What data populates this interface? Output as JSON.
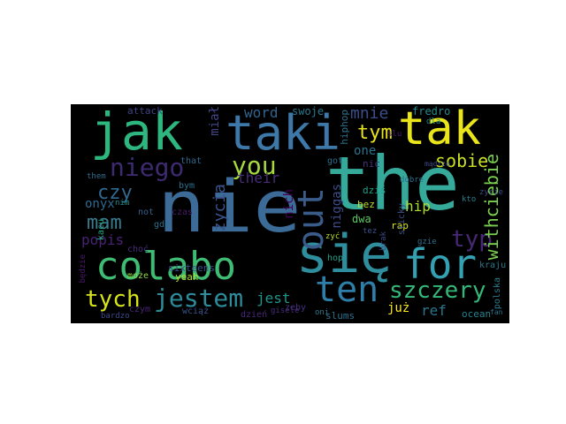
{
  "words": [
    {
      "text": "nie",
      "color": "#3b6b96"
    },
    {
      "text": "the",
      "color": "#35a99a"
    },
    {
      "text": "jak",
      "color": "#2eb67f"
    },
    {
      "text": "taki",
      "color": "#3d78a8"
    },
    {
      "text": "tak",
      "color": "#e9e51a"
    },
    {
      "text": "się",
      "color": "#2f8e9d"
    },
    {
      "text": "colabo",
      "color": "#3fbc73"
    },
    {
      "text": "for",
      "color": "#34a1b3"
    },
    {
      "text": "ten",
      "color": "#2e7eaa"
    },
    {
      "text": "out",
      "color": "#3a5c8a"
    },
    {
      "text": "you",
      "color": "#a5d93f"
    },
    {
      "text": "jestem",
      "color": "#2d8c9a"
    },
    {
      "text": "tych",
      "color": "#d6e21a"
    },
    {
      "text": "szczery",
      "color": "#35b779"
    },
    {
      "text": "niego",
      "color": "#3e2a70"
    },
    {
      "text": "typ",
      "color": "#472875"
    },
    {
      "text": "withciebie",
      "color": "#7ad151"
    },
    {
      "text": "sobie",
      "color": "#c9e020"
    },
    {
      "text": "mam",
      "color": "#3b7c8f"
    },
    {
      "text": "czy",
      "color": "#30688e"
    },
    {
      "text": "tym",
      "color": "#e8e419"
    },
    {
      "text": "mnie",
      "color": "#3d4d8a"
    },
    {
      "text": "word",
      "color": "#33638d"
    },
    {
      "text": "ref",
      "color": "#2a768e"
    },
    {
      "text": "jest",
      "color": "#1f958b"
    },
    {
      "text": "their",
      "color": "#472c7a"
    },
    {
      "text": "życia",
      "color": "#3a538b"
    },
    {
      "text": "niggas",
      "color": "#3e4c8a"
    },
    {
      "text": "hip",
      "color": "#addc30"
    },
    {
      "text": "onyx",
      "color": "#31688e"
    },
    {
      "text": "popis",
      "color": "#482173"
    },
    {
      "text": "one",
      "color": "#2c728e"
    },
    {
      "text": "miał",
      "color": "#414487"
    },
    {
      "text": "swoje",
      "color": "#2a788e"
    },
    {
      "text": "hiphop",
      "color": "#2c728e"
    },
    {
      "text": "już",
      "color": "#fde725"
    },
    {
      "text": "nich",
      "color": "#440154"
    },
    {
      "text": "fredro",
      "color": "#228b8d"
    },
    {
      "text": "attack",
      "color": "#414487"
    },
    {
      "text": "może",
      "color": "#8fd744"
    },
    {
      "text": "yeah",
      "color": "#b5de2b"
    },
    {
      "text": "sixteens",
      "color": "#3b528b"
    },
    {
      "text": "kacu",
      "color": "#22a884"
    },
    {
      "text": "kraju",
      "color": "#2a788e"
    },
    {
      "text": "ocean",
      "color": "#26828e"
    },
    {
      "text": "polska",
      "color": "#287d8e"
    },
    {
      "text": "slums",
      "color": "#2d708e"
    },
    {
      "text": "zeby",
      "color": "#46327e"
    },
    {
      "text": "dwa",
      "color": "#5ec962"
    },
    {
      "text": "bez",
      "color": "#bddf26"
    },
    {
      "text": "rap",
      "color": "#d8e219"
    },
    {
      "text": "dziś",
      "color": "#1fa187"
    },
    {
      "text": "got",
      "color": "#2d708e"
    },
    {
      "text": "sticky",
      "color": "#3b528b"
    },
    {
      "text": "nic",
      "color": "#46337e"
    },
    {
      "text": "choć",
      "color": "#472d7b"
    },
    {
      "text": "bardzo",
      "color": "#3e4989"
    },
    {
      "text": "czym",
      "color": "#482475"
    },
    {
      "text": "wciąż",
      "color": "#3b528b"
    },
    {
      "text": "dzień",
      "color": "#482878"
    },
    {
      "text": "oni",
      "color": "#2a788e"
    },
    {
      "text": "hop",
      "color": "#1f9e89"
    },
    {
      "text": "czas",
      "color": "#481a6c"
    },
    {
      "text": "gdy",
      "color": "#2c728e"
    },
    {
      "text": "not",
      "color": "#355f8d"
    },
    {
      "text": "that",
      "color": "#31688e"
    },
    {
      "text": "bym",
      "color": "#2c728e"
    },
    {
      "text": "them",
      "color": "#2f6c8e"
    },
    {
      "text": "będzie",
      "color": "#48186a"
    },
    {
      "text": "nim",
      "color": "#21918c"
    },
    {
      "text": "kto",
      "color": "#26828e"
    },
    {
      "text": "zyć",
      "color": "#b5de2b"
    },
    {
      "text": "tez",
      "color": "#3b528b"
    },
    {
      "text": "dla",
      "color": "#238a8d"
    },
    {
      "text": "slu",
      "color": "#481f70"
    },
    {
      "text": "gzie",
      "color": "#2e6e8e"
    },
    {
      "text": "dobre",
      "color": "#2e6f8e"
    },
    {
      "text": "brak",
      "color": "#3f4788"
    },
    {
      "text": "gisele",
      "color": "#472c7a"
    },
    {
      "text": "zycie",
      "color": "#3e4a89"
    },
    {
      "text": "fan",
      "color": "#2c738e"
    },
    {
      "text": "mądrze",
      "color": "#3e4c8a"
    }
  ]
}
